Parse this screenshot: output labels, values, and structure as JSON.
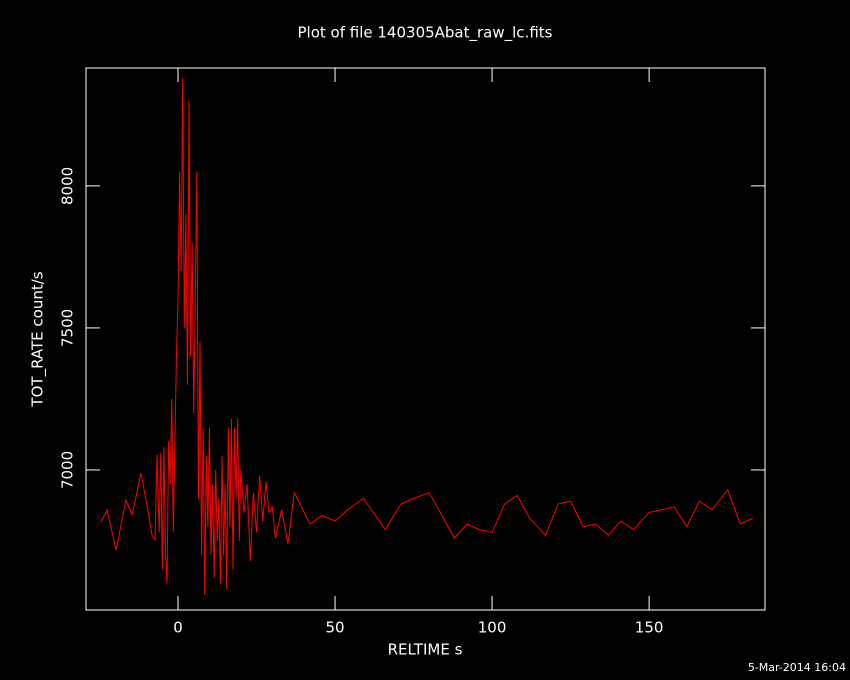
{
  "chart_data": {
    "type": "line",
    "title": "Plot of file 140305Abat_raw_lc.fits",
    "xlabel": "RELTIME  s",
    "ylabel": "TOT_RATE  count/s",
    "footer": "5-Mar-2014 16:04",
    "xlim": [
      -29.3,
      186.9
    ],
    "ylim": [
      6507,
      8415
    ],
    "xticks": [
      0,
      50,
      100,
      150
    ],
    "yticks": [
      7000,
      7500,
      8000
    ],
    "x": [
      -24.5,
      -22.6,
      -19.7,
      -16.6,
      -14.6,
      -11.8,
      -9.6,
      -8.3,
      -7.3,
      -6.7,
      -6,
      -5.5,
      -5,
      -4.5,
      -4,
      -3.5,
      -3,
      -2.5,
      -2,
      -1.5,
      -1,
      -0.5,
      0,
      0.5,
      1,
      1.5,
      2,
      2.5,
      3,
      3.5,
      4,
      4.5,
      5,
      5.5,
      6,
      6.5,
      7,
      7.5,
      8,
      8.5,
      9,
      9.5,
      10,
      10.5,
      11,
      11.5,
      12,
      12.5,
      13,
      13.5,
      14,
      14.5,
      15,
      15.5,
      16,
      16.5,
      17,
      17.5,
      18,
      18.5,
      19,
      19.5,
      20,
      21,
      22,
      23,
      24,
      25,
      26,
      27,
      28,
      29,
      30,
      31,
      33,
      35,
      37,
      42,
      46,
      50,
      54,
      59,
      66,
      71,
      75,
      80,
      84,
      88,
      92,
      96,
      100,
      104,
      108,
      112,
      117,
      121,
      125,
      129,
      133,
      137,
      141,
      145,
      150,
      154,
      158,
      162,
      166,
      170,
      175,
      179,
      183
    ],
    "series": [
      {
        "name": "TOT_RATE",
        "color": "#ff0000",
        "values": [
          6817,
          6859,
          6718,
          6894,
          6842,
          6989,
          6859,
          6771,
          6754,
          7053,
          6780,
          7060,
          6650,
          7080,
          6720,
          6600,
          7100,
          6950,
          7250,
          6780,
          7100,
          7400,
          7600,
          8050,
          7700,
          8380,
          7500,
          7900,
          7300,
          8300,
          7400,
          7800,
          7200,
          7600,
          8050,
          6900,
          7450,
          6700,
          7150,
          6560,
          7050,
          6800,
          7150,
          6700,
          6950,
          6620,
          7000,
          6750,
          6900,
          6600,
          7050,
          6700,
          6950,
          6580,
          7150,
          6800,
          7180,
          6650,
          7150,
          6900,
          7180,
          6750,
          7000,
          6850,
          6950,
          6680,
          6920,
          6780,
          6980,
          6820,
          6960,
          6850,
          6870,
          6760,
          6860,
          6740,
          6920,
          6810,
          6840,
          6820,
          6860,
          6900,
          6790,
          6880,
          6900,
          6920,
          6840,
          6760,
          6810,
          6790,
          6780,
          6880,
          6910,
          6830,
          6770,
          6880,
          6890,
          6800,
          6810,
          6770,
          6820,
          6790,
          6850,
          6860,
          6870,
          6800,
          6890,
          6860,
          6930,
          6810,
          6830
        ]
      }
    ]
  }
}
